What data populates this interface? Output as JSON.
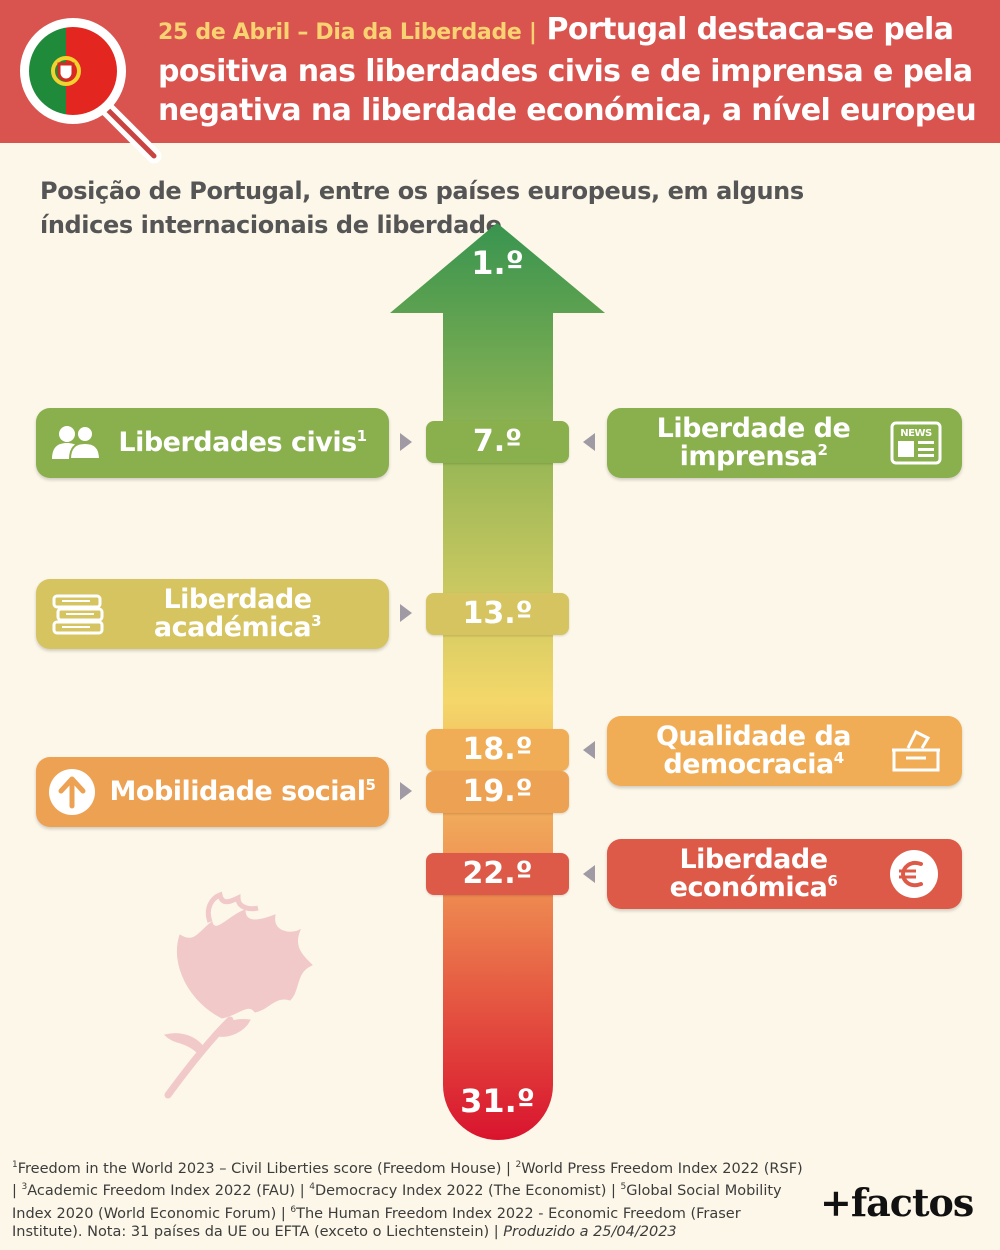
{
  "header": {
    "kicker": "25 de Abril – Dia da Liberdade |",
    "title": "Portugal destaca-se pela positiva nas liberdades civis e de imprensa e pela negativa na liberdade económica, a nível europeu"
  },
  "subtitle": "Posição de Portugal, entre os países europeus, em alguns índices internacionais de liberdade",
  "chart_data": {
    "type": "bar",
    "title": "Posição de Portugal, entre os países europeus, em alguns índices internacionais de liberdade",
    "ylim": [
      1,
      31
    ],
    "scale_top": "1.º",
    "scale_bottom": "31.º",
    "categories": [
      "Liberdades civis",
      "Liberdade de imprensa",
      "Liberdade académica",
      "Qualidade da democracia",
      "Mobilidade social",
      "Liberdade económica"
    ],
    "values": [
      7,
      7,
      13,
      18,
      19,
      22
    ],
    "ranks": [
      {
        "value": 7,
        "label": "7.º"
      },
      {
        "value": 13,
        "label": "13.º"
      },
      {
        "value": 18,
        "label": "18.º"
      },
      {
        "value": 19,
        "label": "19.º"
      },
      {
        "value": 22,
        "label": "22.º"
      }
    ]
  },
  "indices": {
    "civis": {
      "label": "Liberdades civis",
      "note": "1",
      "icon": "people-icon",
      "color": "#8aaf4d"
    },
    "imprensa": {
      "label_1": "Liberdade de",
      "label_2": "imprensa",
      "note": "2",
      "icon": "newspaper-icon",
      "icon_text": "NEWS",
      "color": "#8aaf4d"
    },
    "academica": {
      "label_1": "Liberdade",
      "label_2": "académica",
      "note": "3",
      "icon": "books-icon",
      "color": "#d6c461"
    },
    "democracia": {
      "label_1": "Qualidade da",
      "label_2": "democracia",
      "note": "4",
      "icon": "ballot-box-icon",
      "color": "#f0ad55"
    },
    "mobilidade": {
      "label": "Mobilidade social",
      "note": "5",
      "icon": "arrow-up-circle-icon",
      "color": "#eda152"
    },
    "economica": {
      "label_1": "Liberdade",
      "label_2": "económica",
      "note": "6",
      "icon": "euro-icon",
      "color": "#dd5a48"
    }
  },
  "colors": {
    "header": "#d9534f",
    "kicker": "#f9d371",
    "arrow_top": "#38944f",
    "arrow_mid": "#f4d76a",
    "arrow_bottom": "#d9142e",
    "background": "#fdf7e9"
  },
  "footnote": {
    "n1": "1",
    "t1": "Freedom in the World 2023 – Civil Liberties score (Freedom House) |",
    "n2": "2",
    "t2": "World Press Freedom Index 2022 (RSF) |",
    "n3": "3",
    "t3": "Academic Freedom Index 2022 (FAU) |",
    "n4": "4",
    "t4": "Democracy Index 2022 (The Economist) |",
    "n5": "5",
    "t5": "Global Social Mobility Index 2020 (World Economic Forum) |",
    "n6": "6",
    "t6": "The Human Freedom Index 2022 - Economic Freedom (Fraser Institute).",
    "nota": "Nota: 31 países da UE ou EFTA (exceto o Liechtenstein) |",
    "produzido": "Produzido a 25/04/2023"
  },
  "brand": "+factos"
}
